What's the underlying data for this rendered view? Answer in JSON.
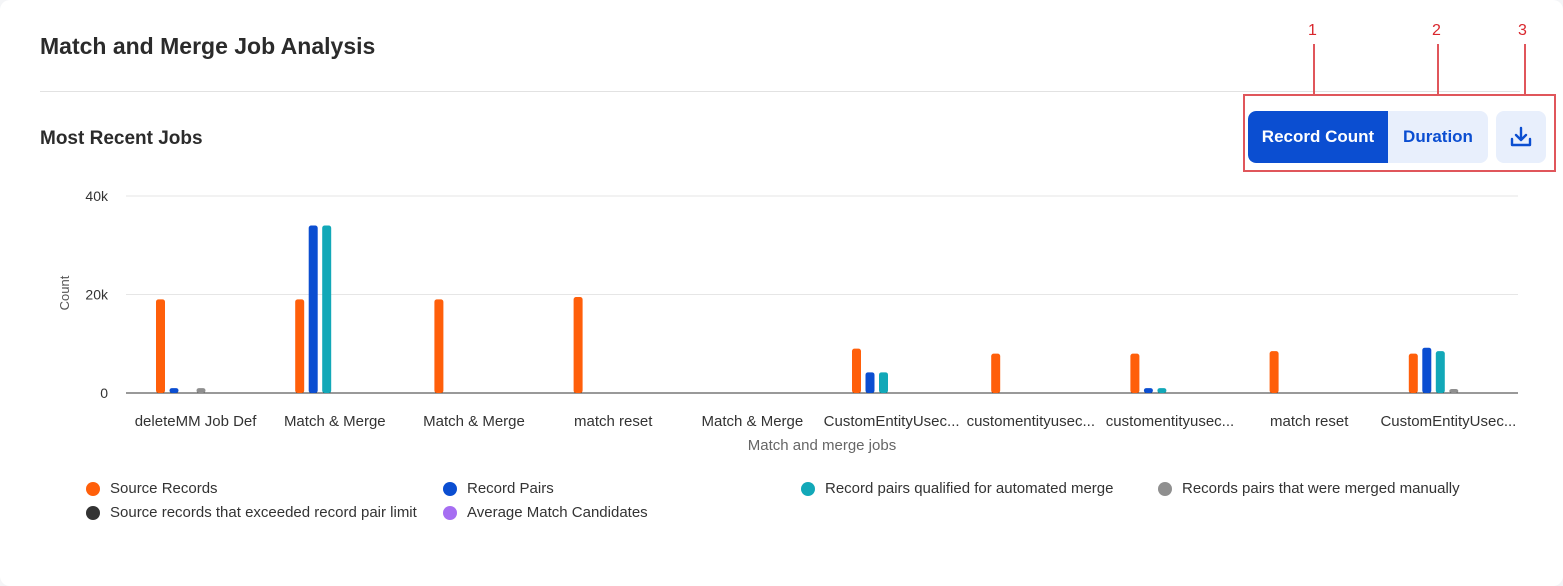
{
  "header": {
    "title": "Match and Merge Job Analysis",
    "subtitle": "Most Recent Jobs"
  },
  "toolbar": {
    "record_count_label": "Record Count",
    "duration_label": "Duration",
    "download_icon": "download-icon"
  },
  "annotations": [
    "1",
    "2",
    "3"
  ],
  "colors": {
    "accent": "#0b4ed1",
    "annotation": "#d9262c"
  },
  "chart_data": {
    "type": "bar",
    "title": "Most Recent Jobs",
    "xlabel": "Match and merge jobs",
    "ylabel": "Count",
    "ylim": [
      0,
      40000
    ],
    "yticks": [
      0,
      20000,
      40000
    ],
    "ytick_labels": [
      "0",
      "20k",
      "40k"
    ],
    "grid": true,
    "legend_position": "bottom",
    "categories": [
      "deleteMM Job Def",
      "Match & Merge",
      "Match & Merge",
      "match reset",
      "Match & Merge",
      "CustomEntityUsec...",
      "customentityusec...",
      "customentityusec...",
      "match reset",
      "CustomEntityUsec..."
    ],
    "series": [
      {
        "name": "Source Records",
        "color": "#ff5f0a",
        "values": [
          19000,
          19000,
          19000,
          19500,
          0,
          9000,
          8000,
          8000,
          8500,
          8000
        ]
      },
      {
        "name": "Record Pairs",
        "color": "#0b4ed1",
        "values": [
          1000,
          34000,
          0,
          0,
          0,
          4200,
          0,
          1000,
          0,
          9200
        ]
      },
      {
        "name": "Record pairs qualified for automated merge",
        "color": "#12a8b8",
        "values": [
          0,
          34000,
          0,
          0,
          0,
          4200,
          0,
          1000,
          0,
          8500
        ]
      },
      {
        "name": "Records pairs that were merged manually",
        "color": "#8f8f8f",
        "values": [
          1000,
          0,
          0,
          0,
          0,
          0,
          0,
          0,
          0,
          800
        ]
      },
      {
        "name": "Source records that exceeded record pair limit",
        "color": "#333333",
        "values": [
          0,
          0,
          0,
          0,
          0,
          0,
          0,
          0,
          0,
          0
        ]
      },
      {
        "name": "Average Match Candidates",
        "color": "#a66ef2",
        "values": [
          0,
          0,
          0,
          0,
          0,
          0,
          0,
          0,
          0,
          0
        ]
      }
    ]
  }
}
